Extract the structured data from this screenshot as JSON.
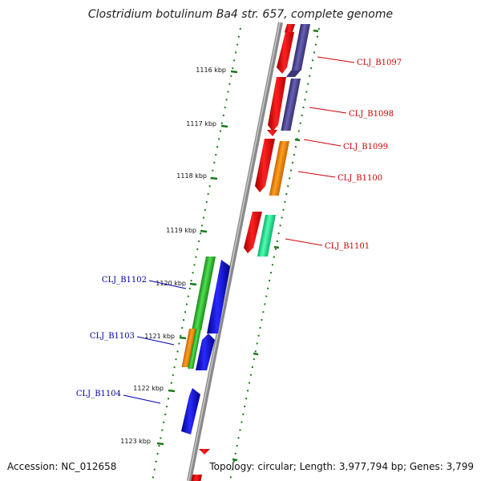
{
  "title": "Clostridium botulinum Ba4 str. 657, complete genome",
  "accession": "Accession: NC_012658",
  "topology": "Topology: circular; Length: 3,977,794 bp; Genes: 3,799",
  "colors": {
    "backbone": "#808080",
    "tick": "#1a7a1a",
    "label_forward": "#cc0000",
    "label_reverse": "#0000aa"
  },
  "ticks": [
    {
      "label": "1116 kbp"
    },
    {
      "label": "1117 kbp"
    },
    {
      "label": "1118 kbp"
    },
    {
      "label": "1119 kbp"
    },
    {
      "label": "1120 kbp"
    },
    {
      "label": "1121 kbp"
    },
    {
      "label": "1122 kbp"
    },
    {
      "label": "1123 kbp"
    }
  ],
  "genes": [
    {
      "label": "CLJ_B1097",
      "strand": "forward"
    },
    {
      "label": "CLJ_B1098",
      "strand": "forward"
    },
    {
      "label": "CLJ_B1099",
      "strand": "forward"
    },
    {
      "label": "CLJ_B1100",
      "strand": "forward"
    },
    {
      "label": "CLJ_B1101",
      "strand": "forward"
    },
    {
      "label": "CLJ_B1102",
      "strand": "reverse"
    },
    {
      "label": "CLJ_B1103",
      "strand": "reverse"
    },
    {
      "label": "CLJ_B1104",
      "strand": "reverse"
    }
  ]
}
